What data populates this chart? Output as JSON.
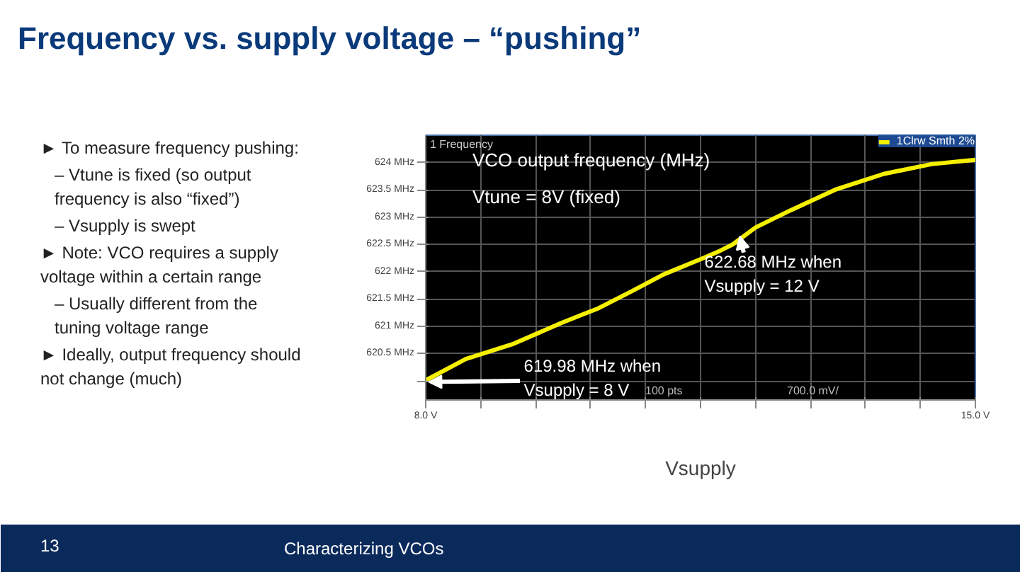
{
  "chart_data": {
    "type": "line",
    "title": "Frequency vs. supply voltage – “pushing”",
    "xlabel": "Vsupply",
    "x": [
      8.0,
      8.51,
      9.12,
      9.71,
      10.02,
      10.2,
      10.62,
      11.03,
      11.52,
      11.73,
      11.91,
      12.2,
      12.64,
      13.23,
      13.83,
      14.44,
      15.0
    ],
    "series": [
      {
        "name": "1Clrw Smth 2%",
        "color": "#f5f000",
        "values": [
          620.01,
          620.4,
          620.68,
          621.05,
          621.23,
          621.33,
          621.64,
          621.95,
          622.24,
          622.37,
          622.5,
          622.81,
          623.12,
          623.51,
          623.79,
          623.97,
          624.05
        ]
      }
    ],
    "xlim": [
      8.0,
      15.0
    ],
    "xticks": [
      {
        "value": 8.0,
        "label": "8.0 V"
      },
      {
        "value": 8.7,
        "label": null
      },
      {
        "value": 9.4,
        "label": null
      },
      {
        "value": 10.1,
        "label": null
      },
      {
        "value": 10.8,
        "label": null
      },
      {
        "value": 11.5,
        "label": null
      },
      {
        "value": 12.2,
        "label": null
      },
      {
        "value": 12.9,
        "label": null
      },
      {
        "value": 13.6,
        "label": null
      },
      {
        "value": 14.3,
        "label": null
      },
      {
        "value": 15.0,
        "label": "15.0 V"
      }
    ],
    "ylim": [
      619.65,
      624.5
    ],
    "yticks": [
      {
        "value": 620,
        "label": null
      },
      {
        "value": 620.5,
        "label": "620.5 MHz"
      },
      {
        "value": 621,
        "label": "621 MHz"
      },
      {
        "value": 621.5,
        "label": "621.5 MHz"
      },
      {
        "value": 622,
        "label": "622 MHz"
      },
      {
        "value": 622.5,
        "label": "622.5 MHz"
      },
      {
        "value": 623,
        "label": "623 MHz"
      },
      {
        "value": 623.5,
        "label": "623.5 MHz"
      },
      {
        "value": 624,
        "label": "624 MHz"
      }
    ],
    "grid": true,
    "legend": "top right",
    "line_style": "solid",
    "marker": "none",
    "annotations": [
      {
        "text": "619.98 MHz when\nVsupply = 8 V",
        "x": 8.0,
        "y": 619.98
      },
      {
        "text": "622.68 MHz when\nVsupply = 12 V",
        "x": 12.0,
        "y": 622.68
      },
      "VCO output frequency (MHz)",
      "Vtune = 8V (fixed)",
      "1 Frequency",
      "100 pts",
      "700.0 mV/",
      "► To measure frequency pushing:",
      "– Vtune is fixed (so output\n   frequency is also “fixed”)",
      "– Vsupply is swept",
      "► Note: VCO requires a supply\n   voltage within a certain range",
      "– Usually different from the\n   tuning voltage range",
      "► Ideally, output frequency should\n   not change (much)",
      "13",
      "Characterizing VCOs"
    ]
  }
}
